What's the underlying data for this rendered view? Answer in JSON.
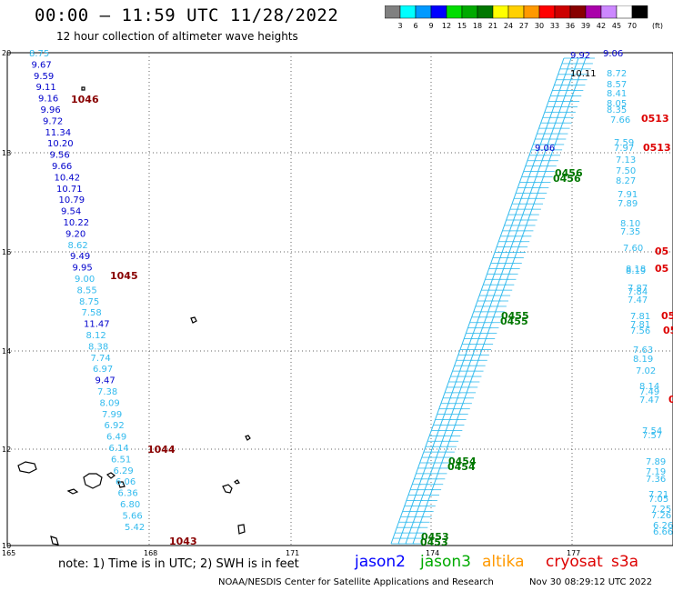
{
  "header": {
    "title": "00:00 – 11:59 UTC 11/28/2022",
    "subtitle": "12 hour collection of altimeter wave heights"
  },
  "color_scale": {
    "unit_label": "(ft)",
    "bins": [
      {
        "label": "3",
        "color": "#808080"
      },
      {
        "label": "6",
        "color": "#00ffff"
      },
      {
        "label": "9",
        "color": "#0099ff"
      },
      {
        "label": "12",
        "color": "#0000ff"
      },
      {
        "label": "15",
        "color": "#00dd00"
      },
      {
        "label": "18",
        "color": "#00aa00"
      },
      {
        "label": "21",
        "color": "#007700"
      },
      {
        "label": "24",
        "color": "#ffff00"
      },
      {
        "label": "27",
        "color": "#ffd000"
      },
      {
        "label": "30",
        "color": "#ff9900"
      },
      {
        "label": "33",
        "color": "#ff0000"
      },
      {
        "label": "36",
        "color": "#cc0000"
      },
      {
        "label": "39",
        "color": "#880000"
      },
      {
        "label": "42",
        "color": "#aa00aa"
      },
      {
        "label": "45",
        "color": "#cc88ff"
      },
      {
        "label": "70",
        "color": "#ffffff"
      },
      {
        "label": "",
        "color": "#000000"
      }
    ]
  },
  "map": {
    "y_ticks": [
      "20",
      "18",
      "16",
      "14",
      "12",
      "10"
    ],
    "x_ticks": [
      "165",
      "168",
      "171",
      "174",
      "177"
    ],
    "track_color": "#33bbee",
    "left_track": [
      {
        "v": "8.75",
        "c": "#33bbee"
      },
      {
        "v": "9.67",
        "c": "#0000cc"
      },
      {
        "v": "9.59",
        "c": "#0000cc"
      },
      {
        "v": "9.11",
        "c": "#0000cc"
      },
      {
        "v": "9.16",
        "c": "#0000cc"
      },
      {
        "v": "9.96",
        "c": "#0000cc"
      },
      {
        "v": "9.72",
        "c": "#0000cc"
      },
      {
        "v": "11.34",
        "c": "#0000cc"
      },
      {
        "v": "10.20",
        "c": "#0000cc"
      },
      {
        "v": "9.56",
        "c": "#0000cc"
      },
      {
        "v": "9.66",
        "c": "#0000cc"
      },
      {
        "v": "10.42",
        "c": "#0000cc"
      },
      {
        "v": "10.71",
        "c": "#0000cc"
      },
      {
        "v": "10.79",
        "c": "#0000cc"
      },
      {
        "v": "9.54",
        "c": "#0000cc"
      },
      {
        "v": "10.22",
        "c": "#0000cc"
      },
      {
        "v": "9.20",
        "c": "#0000cc"
      },
      {
        "v": "8.62",
        "c": "#33bbee"
      },
      {
        "v": "9.49",
        "c": "#0000cc"
      },
      {
        "v": "9.95",
        "c": "#0000cc"
      },
      {
        "v": "9.00",
        "c": "#33bbee"
      },
      {
        "v": "8.55",
        "c": "#33bbee"
      },
      {
        "v": "8.75",
        "c": "#33bbee"
      },
      {
        "v": "7.58",
        "c": "#33bbee"
      },
      {
        "v": "11.47",
        "c": "#0000cc"
      },
      {
        "v": "8.12",
        "c": "#33bbee"
      },
      {
        "v": "8.38",
        "c": "#33bbee"
      },
      {
        "v": "7.74",
        "c": "#33bbee"
      },
      {
        "v": "6.97",
        "c": "#33bbee"
      },
      {
        "v": "9.47",
        "c": "#0000cc"
      },
      {
        "v": "7.38",
        "c": "#33bbee"
      },
      {
        "v": "8.09",
        "c": "#33bbee"
      },
      {
        "v": "7.99",
        "c": "#33bbee"
      },
      {
        "v": "6.92",
        "c": "#33bbee"
      },
      {
        "v": "6.49",
        "c": "#33bbee"
      },
      {
        "v": "6.14",
        "c": "#33bbee"
      },
      {
        "v": "6.51",
        "c": "#33bbee"
      },
      {
        "v": "6.29",
        "c": "#33bbee"
      },
      {
        "v": "6.06",
        "c": "#33bbee"
      },
      {
        "v": "6.36",
        "c": "#33bbee"
      },
      {
        "v": "6.80",
        "c": "#33bbee"
      },
      {
        "v": "5.66",
        "c": "#33bbee"
      },
      {
        "v": "5.42",
        "c": "#33bbee"
      }
    ],
    "left_times": [
      {
        "t": "1046",
        "c": "#880000"
      },
      {
        "t": "1045",
        "c": "#880000"
      },
      {
        "t": "1044",
        "c": "#880000"
      },
      {
        "t": "1043",
        "c": "#880000"
      }
    ],
    "right_track": [
      {
        "v": "9.06",
        "c": "#0000cc"
      },
      {
        "v": "8.72",
        "c": "#33bbee"
      },
      {
        "v": "8.57",
        "c": "#33bbee"
      },
      {
        "v": "8.41",
        "c": "#33bbee"
      },
      {
        "v": "8.05",
        "c": "#33bbee"
      },
      {
        "v": "8.35",
        "c": "#33bbee"
      },
      {
        "v": "7.66",
        "c": "#33bbee"
      },
      {
        "v": "7.59",
        "c": "#33bbee"
      },
      {
        "v": "7.97",
        "c": "#33bbee"
      },
      {
        "v": "7.13",
        "c": "#33bbee"
      },
      {
        "v": "7.50",
        "c": "#33bbee"
      },
      {
        "v": "8.27",
        "c": "#33bbee"
      },
      {
        "v": "7.91",
        "c": "#33bbee"
      },
      {
        "v": "7.89",
        "c": "#33bbee"
      },
      {
        "v": "8.10",
        "c": "#33bbee"
      },
      {
        "v": "7.35",
        "c": "#33bbee"
      },
      {
        "v": "7.60",
        "c": "#33bbee"
      },
      {
        "v": "8.18",
        "c": "#33bbee"
      },
      {
        "v": "8.19",
        "c": "#33bbee"
      },
      {
        "v": "7.87",
        "c": "#33bbee"
      },
      {
        "v": "7.84",
        "c": "#33bbee"
      },
      {
        "v": "7.47",
        "c": "#33bbee"
      },
      {
        "v": "7.81",
        "c": "#33bbee"
      },
      {
        "v": "7.81",
        "c": "#33bbee"
      },
      {
        "v": "7.56",
        "c": "#33bbee"
      },
      {
        "v": "7.63",
        "c": "#33bbee"
      },
      {
        "v": "8.19",
        "c": "#33bbee"
      },
      {
        "v": "7.02",
        "c": "#33bbee"
      },
      {
        "v": "8.14",
        "c": "#33bbee"
      },
      {
        "v": "7.49",
        "c": "#33bbee"
      },
      {
        "v": "7.47",
        "c": "#33bbee"
      },
      {
        "v": "7.54",
        "c": "#33bbee"
      },
      {
        "v": "7.57",
        "c": "#33bbee"
      },
      {
        "v": "7.89",
        "c": "#33bbee"
      },
      {
        "v": "7.19",
        "c": "#33bbee"
      },
      {
        "v": "7.36",
        "c": "#33bbee"
      },
      {
        "v": "7.21",
        "c": "#33bbee"
      },
      {
        "v": "7.05",
        "c": "#33bbee"
      },
      {
        "v": "7.25",
        "c": "#33bbee"
      },
      {
        "v": "7.26",
        "c": "#33bbee"
      },
      {
        "v": "6.26",
        "c": "#33bbee"
      },
      {
        "v": "6.66",
        "c": "#33bbee"
      }
    ],
    "right_times": [
      {
        "t": "0513",
        "c": "#dd0000"
      },
      {
        "t": "0513",
        "c": "#dd0000"
      },
      {
        "t": "05",
        "c": "#dd0000"
      },
      {
        "t": "05",
        "c": "#dd0000"
      },
      {
        "t": "05",
        "c": "#dd0000"
      },
      {
        "t": "05",
        "c": "#dd0000"
      },
      {
        "t": "0",
        "c": "#dd0000"
      }
    ],
    "diag_times": [
      {
        "t": "0456",
        "c": "#007700"
      },
      {
        "t": "0456",
        "c": "#007700"
      },
      {
        "t": "0455",
        "c": "#007700"
      },
      {
        "t": "0455",
        "c": "#007700"
      },
      {
        "t": "0454",
        "c": "#007700"
      },
      {
        "t": "0454",
        "c": "#007700"
      },
      {
        "t": "0453",
        "c": "#007700"
      },
      {
        "t": "0453",
        "c": "#007700"
      }
    ],
    "diag_top_values": [
      {
        "v": "9.92",
        "c": "#0000cc"
      },
      {
        "v": "10.11",
        "c": "#000000"
      },
      {
        "v": "9.06",
        "c": "#0000cc"
      }
    ]
  },
  "footer": {
    "note": "note:  1) Time is in UTC;  2) SWH is in feet",
    "missions": [
      {
        "name": "jason2",
        "color": "#0000ff"
      },
      {
        "name": "jason3",
        "color": "#00aa00"
      },
      {
        "name": "altika",
        "color": "#ff9900"
      },
      {
        "name": "cryosat",
        "color": "#dd0000"
      },
      {
        "name": "s3a",
        "color": "#dd0000"
      }
    ],
    "credit": "NOAA/NESDIS Center for Satellite Applications and Research",
    "timestamp": "Nov 30 08:29:12 UTC 2022"
  }
}
